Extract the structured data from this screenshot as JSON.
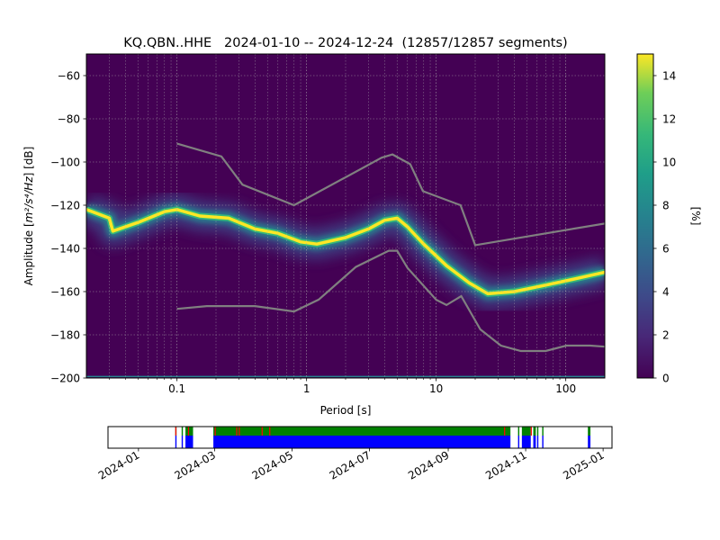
{
  "chart_data": {
    "type": "heatmap",
    "title": "KQ.QBN..HHE   2024-01-10 -- 2024-12-24  (12857/12857 segments)",
    "xlabel": "Period [s]",
    "ylabel_main": "Amplitude [",
    "ylabel_unit": "m²/s⁴/Hz",
    "ylabel_tail": "] [dB]",
    "xscale": "log",
    "xlim": [
      0.02,
      200
    ],
    "ylim": [
      -200,
      -50
    ],
    "x_ticks": [
      {
        "value": 0.1,
        "label": "0.1"
      },
      {
        "value": 1,
        "label": "1"
      },
      {
        "value": 10,
        "label": "10"
      },
      {
        "value": 100,
        "label": "100"
      }
    ],
    "y_ticks": [
      {
        "value": -60,
        "label": "−60"
      },
      {
        "value": -80,
        "label": "−80"
      },
      {
        "value": -100,
        "label": "−100"
      },
      {
        "value": -120,
        "label": "−120"
      },
      {
        "value": -140,
        "label": "−140"
      },
      {
        "value": -160,
        "label": "−160"
      },
      {
        "value": -180,
        "label": "−180"
      },
      {
        "value": -200,
        "label": "−200"
      }
    ],
    "grid": true,
    "colorbar": {
      "label": "[%]",
      "range": [
        0,
        15
      ],
      "ticks": [
        {
          "value": 0,
          "label": "0"
        },
        {
          "value": 2,
          "label": "2"
        },
        {
          "value": 4,
          "label": "4"
        },
        {
          "value": 6,
          "label": "6"
        },
        {
          "value": 8,
          "label": "8"
        },
        {
          "value": 10,
          "label": "10"
        },
        {
          "value": 12,
          "label": "12"
        },
        {
          "value": 14,
          "label": "14"
        }
      ],
      "colormap": "viridis"
    },
    "mode_curve": [
      [
        0.02,
        -122
      ],
      [
        0.03,
        -126
      ],
      [
        0.032,
        -132
      ],
      [
        0.05,
        -128
      ],
      [
        0.08,
        -123
      ],
      [
        0.1,
        -122
      ],
      [
        0.15,
        -125
      ],
      [
        0.25,
        -126
      ],
      [
        0.4,
        -131
      ],
      [
        0.6,
        -133
      ],
      [
        0.9,
        -137
      ],
      [
        1.2,
        -138
      ],
      [
        2,
        -135
      ],
      [
        3,
        -131
      ],
      [
        4,
        -127
      ],
      [
        5,
        -126
      ],
      [
        6,
        -130
      ],
      [
        8,
        -138
      ],
      [
        12,
        -148
      ],
      [
        18,
        -156
      ],
      [
        25,
        -161
      ],
      [
        40,
        -160
      ],
      [
        70,
        -157
      ],
      [
        120,
        -154
      ],
      [
        200,
        -151
      ]
    ],
    "new_high_noise_model": [
      [
        0.1,
        -91.5
      ],
      [
        0.22,
        -97.4
      ],
      [
        0.32,
        -110.5
      ],
      [
        0.8,
        -120
      ],
      [
        3.8,
        -98
      ],
      [
        4.6,
        -96.5
      ],
      [
        6.3,
        -101
      ],
      [
        7.9,
        -113.5
      ],
      [
        15.4,
        -120
      ],
      [
        20,
        -138.5
      ],
      [
        354.8,
        -126
      ]
    ],
    "new_low_noise_model": [
      [
        0.1,
        -168
      ],
      [
        0.17,
        -166.7
      ],
      [
        0.4,
        -166.7
      ],
      [
        0.8,
        -169.2
      ],
      [
        1.24,
        -163.7
      ],
      [
        2.4,
        -148.6
      ],
      [
        4.3,
        -141.1
      ],
      [
        5,
        -141.1
      ],
      [
        6,
        -149
      ],
      [
        10,
        -163.8
      ],
      [
        12,
        -166.2
      ],
      [
        15.6,
        -162.1
      ],
      [
        21.9,
        -177.5
      ],
      [
        31.6,
        -185
      ],
      [
        45,
        -187.5
      ],
      [
        70,
        -187.5
      ],
      [
        101,
        -185
      ],
      [
        154,
        -185
      ],
      [
        200,
        -185.5
      ]
    ],
    "timeline": {
      "tick_labels": [
        {
          "date": "2024-01-01",
          "label": "2024-01"
        },
        {
          "date": "2024-03-01",
          "label": "2024-03"
        },
        {
          "date": "2024-05-01",
          "label": "2024-05"
        },
        {
          "date": "2024-07-01",
          "label": "2024-07"
        },
        {
          "date": "2024-09-01",
          "label": "2024-09"
        },
        {
          "date": "2024-11-01",
          "label": "2024-11"
        },
        {
          "date": "2025-01-01",
          "label": "2025-01"
        }
      ],
      "xlim": [
        "2023-12-08",
        "2025-01-08"
      ],
      "available_data": [
        [
          "2024-01-30",
          "2024-01-31"
        ],
        [
          "2024-02-04",
          "2024-02-05"
        ],
        [
          "2024-02-07",
          "2024-02-13"
        ],
        [
          "2024-02-29",
          "2024-10-20"
        ],
        [
          "2024-10-26",
          "2024-10-27"
        ],
        [
          "2024-10-29",
          "2024-11-05"
        ],
        [
          "2024-11-07",
          "2024-11-09"
        ],
        [
          "2024-11-10",
          "2024-11-11"
        ],
        [
          "2024-11-14",
          "2024-11-15"
        ],
        [
          "2024-12-20",
          "2024-12-22"
        ]
      ],
      "used_data": [
        [
          "2024-01-30",
          "2024-01-31"
        ],
        [
          "2024-02-04",
          "2024-02-05"
        ],
        [
          "2024-02-07",
          "2024-02-13"
        ],
        [
          "2024-02-29",
          "2024-10-20"
        ],
        [
          "2024-10-26",
          "2024-10-27"
        ],
        [
          "2024-10-29",
          "2024-11-05"
        ],
        [
          "2024-11-07",
          "2024-11-09"
        ],
        [
          "2024-11-10",
          "2024-11-11"
        ],
        [
          "2024-11-14",
          "2024-11-15"
        ],
        [
          "2024-12-20",
          "2024-12-22"
        ]
      ],
      "gaps": [
        "2024-01-30",
        "2024-02-09",
        "2024-03-01",
        "2024-03-18",
        "2024-03-20",
        "2024-04-07",
        "2024-04-13",
        "2024-10-15",
        "2024-11-05"
      ],
      "colors": {
        "available": "#008000",
        "used": "#0000ff",
        "gap": "#ff0000"
      }
    }
  }
}
